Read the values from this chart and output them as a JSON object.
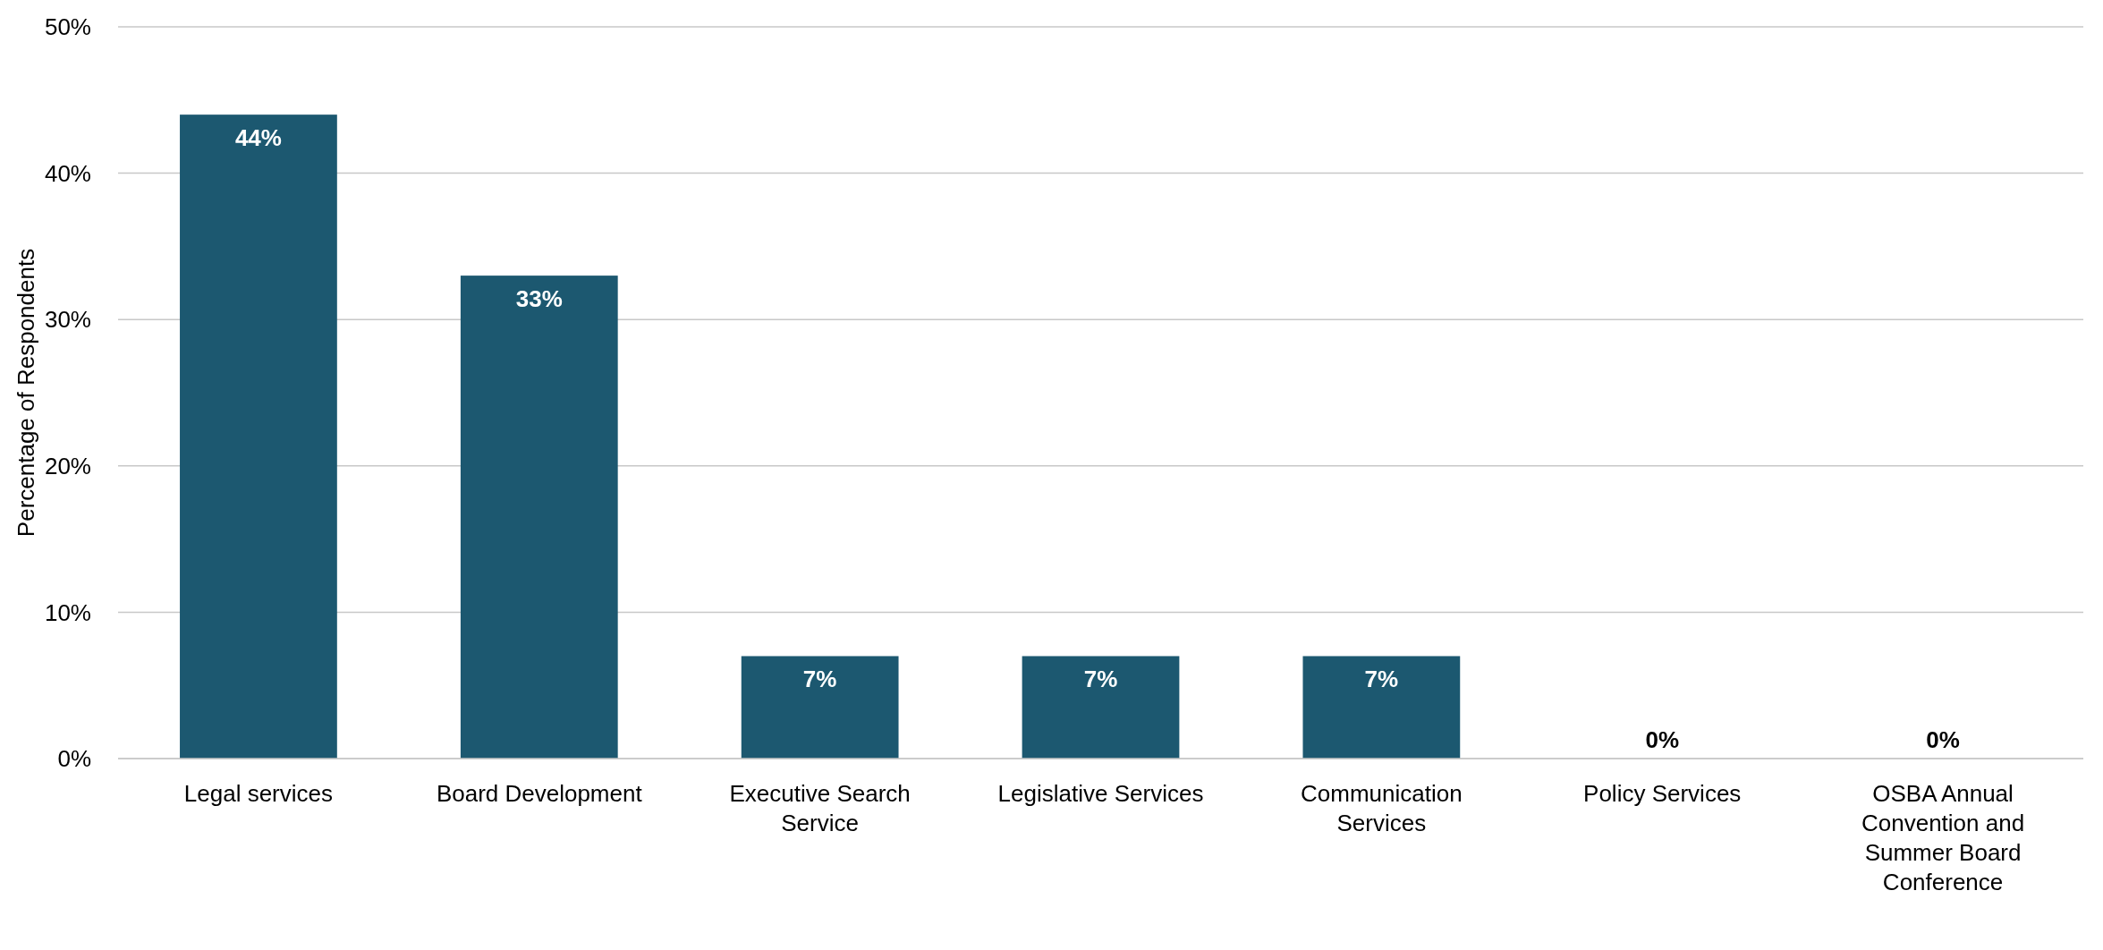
{
  "chart_data": {
    "type": "bar",
    "ylabel": "Percentage of Respondents",
    "categories": [
      "Legal services",
      "Board Development",
      "Executive Search Service",
      "Legislative Services",
      "Communication Services",
      "Policy Services",
      "OSBA Annual Convention and Summer Board Conference"
    ],
    "values": [
      44,
      33,
      7,
      7,
      7,
      0,
      0
    ],
    "value_labels": [
      "44%",
      "33%",
      "7%",
      "7%",
      "7%",
      "0%",
      "0%"
    ],
    "color": "#1c5870",
    "ylim": [
      0,
      50
    ],
    "yticks": [
      {
        "value": 0,
        "label": "0%"
      },
      {
        "value": 10,
        "label": "10%"
      },
      {
        "value": 20,
        "label": "20%"
      },
      {
        "value": 30,
        "label": "30%"
      },
      {
        "value": 40,
        "label": "40%"
      },
      {
        "value": 50,
        "label": "50%"
      }
    ],
    "grid": "y"
  }
}
